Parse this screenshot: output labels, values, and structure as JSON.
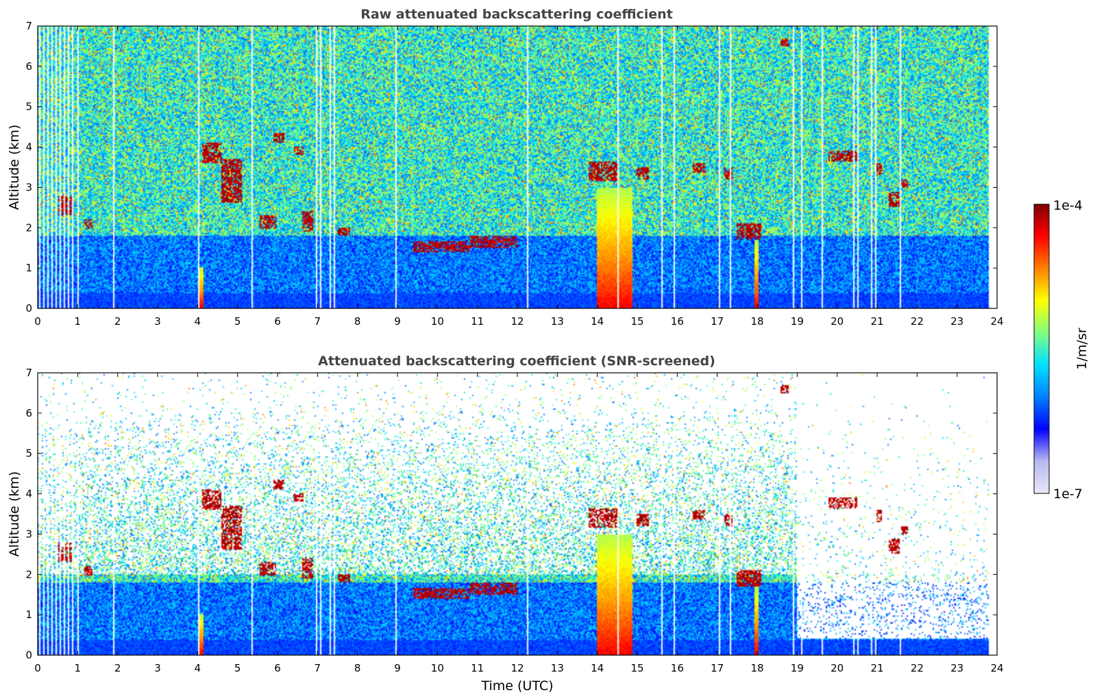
{
  "chart_data": [
    {
      "type": "heatmap",
      "title": "Raw attenuated backscattering coefficient",
      "xlabel": "",
      "ylabel": "Altitude (km)",
      "xlim": [
        0,
        24
      ],
      "ylim": [
        0,
        7
      ],
      "x_ticks": [
        "0",
        "1",
        "2",
        "3",
        "4",
        "5",
        "6",
        "7",
        "8",
        "9",
        "10",
        "11",
        "12",
        "13",
        "14",
        "15",
        "16",
        "17",
        "18",
        "19",
        "20",
        "21",
        "22",
        "23",
        "24"
      ],
      "y_ticks": [
        "0",
        "1",
        "2",
        "3",
        "4",
        "5",
        "6",
        "7"
      ],
      "screened": false,
      "data_end_hour": 23.8,
      "gaps_hours": [
        0.05,
        0.15,
        0.25,
        0.35,
        0.45,
        0.55,
        0.65,
        0.75,
        0.85,
        1.0,
        1.9,
        4.0,
        5.35,
        6.95,
        7.05,
        7.3,
        7.4,
        8.95,
        12.25,
        14.5,
        15.6,
        15.9,
        17.05,
        17.3,
        18.9,
        19.1,
        19.6,
        20.4,
        20.5,
        20.85,
        20.95,
        21.55
      ],
      "cloud_layers": [
        {
          "start": 0.5,
          "end": 0.85,
          "base_km": 2.3,
          "top_km": 2.8
        },
        {
          "start": 1.15,
          "end": 1.35,
          "base_km": 1.95,
          "top_km": 2.2
        },
        {
          "start": 4.1,
          "end": 4.6,
          "base_km": 3.6,
          "top_km": 4.1
        },
        {
          "start": 4.6,
          "end": 5.1,
          "base_km": 2.6,
          "top_km": 3.7
        },
        {
          "start": 5.55,
          "end": 5.95,
          "base_km": 1.95,
          "top_km": 2.3
        },
        {
          "start": 5.9,
          "end": 6.15,
          "base_km": 4.1,
          "top_km": 4.35
        },
        {
          "start": 6.4,
          "end": 6.65,
          "base_km": 3.8,
          "top_km": 4.0
        },
        {
          "start": 6.6,
          "end": 6.9,
          "base_km": 1.9,
          "top_km": 2.4
        },
        {
          "start": 7.5,
          "end": 7.8,
          "base_km": 1.8,
          "top_km": 2.0
        },
        {
          "start": 9.4,
          "end": 10.8,
          "base_km": 1.4,
          "top_km": 1.65
        },
        {
          "start": 10.8,
          "end": 12.0,
          "base_km": 1.5,
          "top_km": 1.8
        },
        {
          "start": 13.8,
          "end": 14.5,
          "base_km": 3.15,
          "top_km": 3.65
        },
        {
          "start": 15.0,
          "end": 15.3,
          "base_km": 3.2,
          "top_km": 3.5
        },
        {
          "start": 16.4,
          "end": 16.7,
          "base_km": 3.35,
          "top_km": 3.6
        },
        {
          "start": 17.2,
          "end": 17.4,
          "base_km": 3.2,
          "top_km": 3.5
        },
        {
          "start": 17.5,
          "end": 18.1,
          "base_km": 1.7,
          "top_km": 2.1
        },
        {
          "start": 18.6,
          "end": 18.8,
          "base_km": 6.5,
          "top_km": 6.7
        },
        {
          "start": 19.8,
          "end": 20.5,
          "base_km": 3.65,
          "top_km": 3.9
        },
        {
          "start": 21.0,
          "end": 21.15,
          "base_km": 3.3,
          "top_km": 3.6
        },
        {
          "start": 21.3,
          "end": 21.6,
          "base_km": 2.5,
          "top_km": 2.9
        },
        {
          "start": 21.6,
          "end": 21.8,
          "base_km": 3.0,
          "top_km": 3.2
        }
      ],
      "strong_columns": [
        {
          "start": 14.0,
          "end": 14.9,
          "top_km": 3.0
        },
        {
          "start": 4.05,
          "end": 4.15,
          "top_km": 1.0
        },
        {
          "start": 17.95,
          "end": 18.05,
          "top_km": 1.7
        }
      ]
    },
    {
      "type": "heatmap",
      "title": "Attenuated backscattering coefficient (SNR-screened)",
      "xlabel": "Time (UTC)",
      "ylabel": "Altitude (km)",
      "xlim": [
        0,
        24
      ],
      "ylim": [
        0,
        7
      ],
      "x_ticks": [
        "0",
        "1",
        "2",
        "3",
        "4",
        "5",
        "6",
        "7",
        "8",
        "9",
        "10",
        "11",
        "12",
        "13",
        "14",
        "15",
        "16",
        "17",
        "18",
        "19",
        "20",
        "21",
        "22",
        "23",
        "24"
      ],
      "y_ticks": [
        "0",
        "1",
        "2",
        "3",
        "4",
        "5",
        "6",
        "7"
      ],
      "screened": true,
      "data_end_hour": 23.8,
      "gaps_hours": [
        0.05,
        0.15,
        0.25,
        0.35,
        0.45,
        0.55,
        0.65,
        0.75,
        0.85,
        1.0,
        1.9,
        4.0,
        5.35,
        6.95,
        7.05,
        7.3,
        7.4,
        8.95,
        12.25,
        14.5,
        15.6,
        15.9,
        17.05,
        17.3,
        18.9,
        19.1,
        19.6,
        20.4,
        20.5,
        20.85,
        20.95,
        21.55
      ],
      "cloud_layers": [
        {
          "start": 0.5,
          "end": 0.85,
          "base_km": 2.3,
          "top_km": 2.8
        },
        {
          "start": 1.15,
          "end": 1.35,
          "base_km": 1.95,
          "top_km": 2.2
        },
        {
          "start": 4.1,
          "end": 4.6,
          "base_km": 3.6,
          "top_km": 4.1
        },
        {
          "start": 4.6,
          "end": 5.1,
          "base_km": 2.6,
          "top_km": 3.7
        },
        {
          "start": 5.55,
          "end": 5.95,
          "base_km": 1.95,
          "top_km": 2.3
        },
        {
          "start": 5.9,
          "end": 6.15,
          "base_km": 4.1,
          "top_km": 4.35
        },
        {
          "start": 6.4,
          "end": 6.65,
          "base_km": 3.8,
          "top_km": 4.0
        },
        {
          "start": 6.6,
          "end": 6.9,
          "base_km": 1.9,
          "top_km": 2.4
        },
        {
          "start": 7.5,
          "end": 7.8,
          "base_km": 1.8,
          "top_km": 2.0
        },
        {
          "start": 9.4,
          "end": 10.8,
          "base_km": 1.4,
          "top_km": 1.65
        },
        {
          "start": 10.8,
          "end": 12.0,
          "base_km": 1.5,
          "top_km": 1.8
        },
        {
          "start": 13.8,
          "end": 14.5,
          "base_km": 3.15,
          "top_km": 3.65
        },
        {
          "start": 15.0,
          "end": 15.3,
          "base_km": 3.2,
          "top_km": 3.5
        },
        {
          "start": 16.4,
          "end": 16.7,
          "base_km": 3.35,
          "top_km": 3.6
        },
        {
          "start": 17.2,
          "end": 17.4,
          "base_km": 3.2,
          "top_km": 3.5
        },
        {
          "start": 17.5,
          "end": 18.1,
          "base_km": 1.7,
          "top_km": 2.1
        },
        {
          "start": 18.6,
          "end": 18.8,
          "base_km": 6.5,
          "top_km": 6.7
        },
        {
          "start": 19.8,
          "end": 20.5,
          "base_km": 3.65,
          "top_km": 3.9
        },
        {
          "start": 21.0,
          "end": 21.15,
          "base_km": 3.3,
          "top_km": 3.6
        },
        {
          "start": 21.3,
          "end": 21.6,
          "base_km": 2.5,
          "top_km": 2.9
        },
        {
          "start": 21.6,
          "end": 21.8,
          "base_km": 3.0,
          "top_km": 3.2
        }
      ],
      "strong_columns": [
        {
          "start": 14.0,
          "end": 14.9,
          "top_km": 3.0
        },
        {
          "start": 4.05,
          "end": 4.15,
          "top_km": 1.0
        },
        {
          "start": 17.95,
          "end": 18.05,
          "top_km": 1.7
        }
      ]
    }
  ],
  "colorbar": {
    "label": "1/m/sr",
    "max_label": "1e-4",
    "min_label": "1e-7",
    "colormap": "jet",
    "colors": [
      "#e8e8f8",
      "#b8b8f0",
      "#0000ff",
      "#0080ff",
      "#00e0ff",
      "#80ff80",
      "#ffff00",
      "#ff8000",
      "#ff0000",
      "#800000"
    ]
  }
}
